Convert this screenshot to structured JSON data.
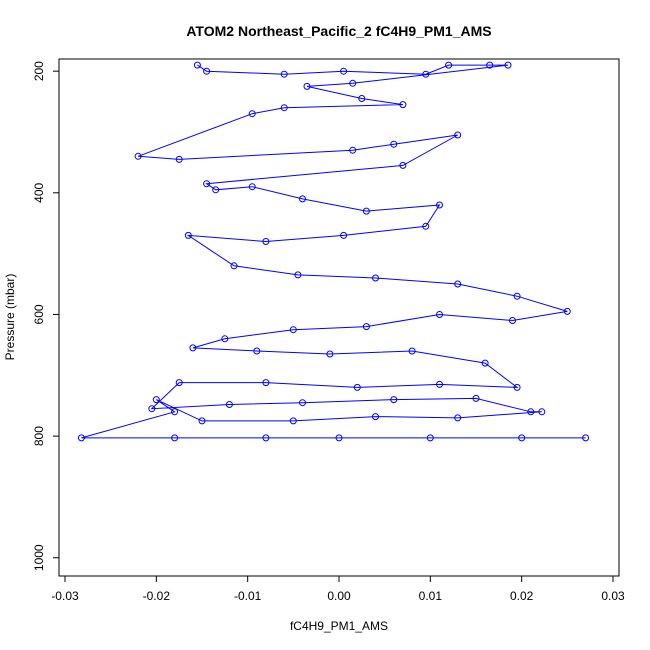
{
  "chart_data": {
    "type": "scatter",
    "title": "ATOM2 Northeast_Pacific_2 fC4H9_PM1_AMS",
    "xlabel": "fC4H9_PM1_AMS",
    "ylabel": "Pressure (mbar)",
    "xlim": [
      -0.03,
      0.03
    ],
    "ylim": [
      1030,
      180
    ],
    "y_reversed": true,
    "x_ticks": [
      -0.03,
      -0.02,
      -0.01,
      0.0,
      0.01,
      0.02,
      0.03
    ],
    "x_tick_labels": [
      "-0.03",
      "-0.02",
      "-0.01",
      "0.00",
      "0.01",
      "0.02",
      "0.03"
    ],
    "y_ticks": [
      200,
      400,
      600,
      800,
      1000
    ],
    "y_tick_labels": [
      "200",
      "400",
      "600",
      "800",
      "1000"
    ],
    "series_style": {
      "color": "#0000ff",
      "marker": "open-circle",
      "connected": true
    },
    "grid": false,
    "legend": "none",
    "series": [
      {
        "name": "",
        "points": [
          [
            -0.0155,
            190
          ],
          [
            -0.0145,
            200
          ],
          [
            -0.006,
            205
          ],
          [
            0.0005,
            200
          ],
          [
            0.0095,
            205
          ],
          [
            0.012,
            190
          ],
          [
            0.0165,
            190
          ],
          [
            0.0185,
            190
          ],
          [
            0.0015,
            220
          ],
          [
            -0.0035,
            225
          ],
          [
            0.0025,
            245
          ],
          [
            0.007,
            255
          ],
          [
            -0.006,
            260
          ],
          [
            -0.0095,
            270
          ],
          [
            -0.022,
            340
          ],
          [
            -0.0175,
            345
          ],
          [
            0.0015,
            330
          ],
          [
            0.006,
            320
          ],
          [
            0.013,
            305
          ],
          [
            0.007,
            355
          ],
          [
            -0.0145,
            385
          ],
          [
            -0.0135,
            395
          ],
          [
            -0.0095,
            390
          ],
          [
            -0.004,
            410
          ],
          [
            0.003,
            430
          ],
          [
            0.011,
            420
          ],
          [
            0.0095,
            455
          ],
          [
            0.0005,
            470
          ],
          [
            -0.008,
            480
          ],
          [
            -0.0165,
            470
          ],
          [
            -0.0115,
            520
          ],
          [
            -0.0045,
            535
          ],
          [
            0.004,
            540
          ],
          [
            0.013,
            550
          ],
          [
            0.0195,
            570
          ],
          [
            0.025,
            595
          ],
          [
            0.019,
            610
          ],
          [
            0.011,
            600
          ],
          [
            0.003,
            620
          ],
          [
            -0.005,
            625
          ],
          [
            -0.0125,
            640
          ],
          [
            -0.016,
            655
          ],
          [
            -0.009,
            660
          ],
          [
            -0.001,
            665
          ],
          [
            0.008,
            660
          ],
          [
            0.016,
            680
          ],
          [
            0.0195,
            720
          ],
          [
            0.011,
            715
          ],
          [
            0.002,
            720
          ],
          [
            -0.008,
            712
          ],
          [
            -0.0175,
            712
          ],
          [
            -0.0205,
            755
          ],
          [
            -0.012,
            748
          ],
          [
            -0.004,
            745
          ],
          [
            0.006,
            740
          ],
          [
            0.015,
            738
          ],
          [
            0.021,
            760
          ],
          [
            0.0222,
            760
          ],
          [
            0.013,
            770
          ],
          [
            0.004,
            768
          ],
          [
            -0.005,
            775
          ],
          [
            -0.015,
            775
          ],
          [
            -0.02,
            740
          ],
          [
            -0.018,
            760
          ],
          [
            -0.0282,
            803
          ],
          [
            -0.018,
            803
          ],
          [
            -0.008,
            803
          ],
          [
            0.0,
            803
          ],
          [
            0.01,
            803
          ],
          [
            0.02,
            803
          ],
          [
            0.027,
            803
          ]
        ]
      }
    ]
  }
}
